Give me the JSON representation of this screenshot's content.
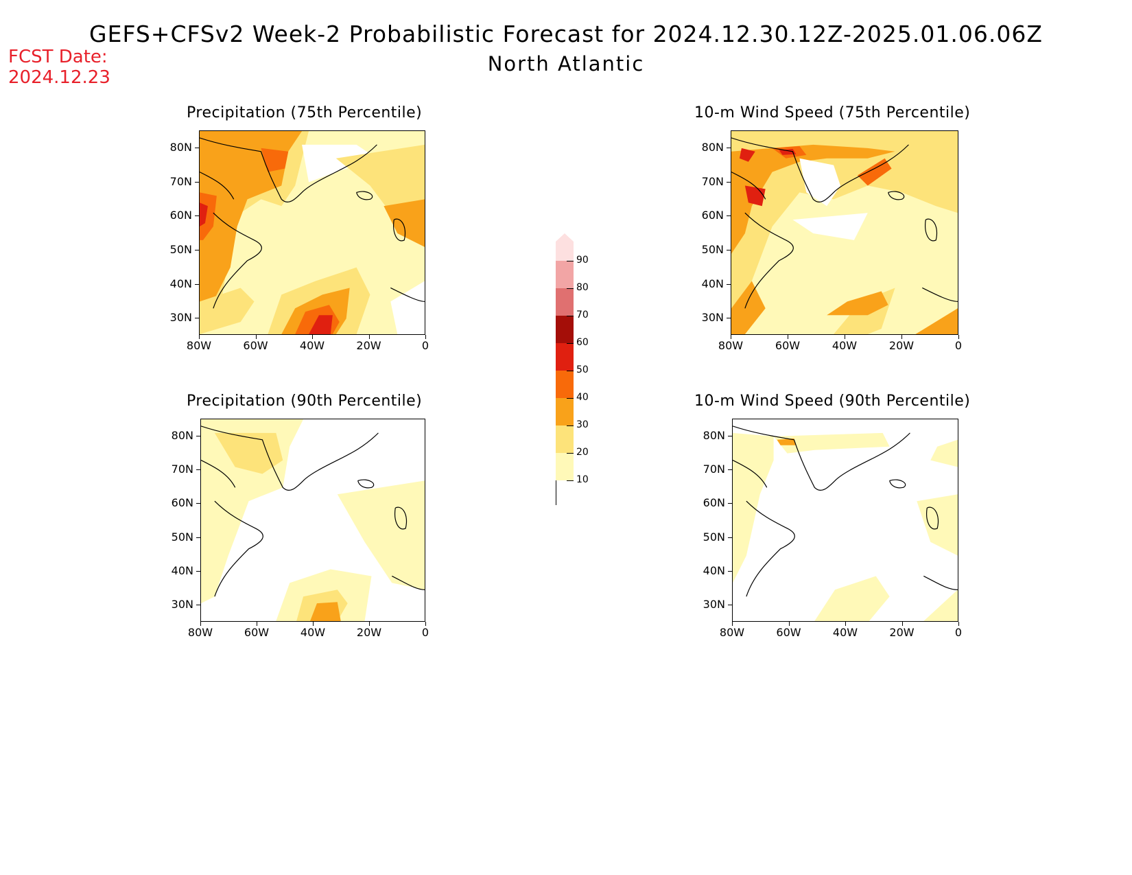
{
  "header": {
    "title": "GEFS+CFSv2 Week-2 Probabilistic Forecast for 2024.12.30.12Z-2025.01.06.06Z",
    "region": "North Atlantic",
    "fcst_label": "FCST Date:",
    "fcst_date": "2024.12.23"
  },
  "panels": [
    {
      "title": "Precipitation (75th Percentile)"
    },
    {
      "title": "10-m Wind Speed (75th Percentile)"
    },
    {
      "title": "Precipitation (90th Percentile)"
    },
    {
      "title": "10-m Wind Speed (90th Percentile)"
    }
  ],
  "axes": {
    "lat_labels": [
      "80N",
      "70N",
      "60N",
      "50N",
      "40N",
      "30N"
    ],
    "lon_labels": [
      "80W",
      "60W",
      "40W",
      "20W",
      "0"
    ],
    "lat_range": [
      25,
      85
    ],
    "lon_range": [
      -80,
      0
    ]
  },
  "colorbar": {
    "levels": [
      "10",
      "20",
      "30",
      "40",
      "50",
      "60",
      "70",
      "80",
      "90"
    ],
    "colors": [
      "#fff9b8",
      "#fde37a",
      "#f9a21a",
      "#f86a0a",
      "#e02010",
      "#a40e08",
      "#e07070",
      "#f2a5a5",
      "#fde0e0"
    ]
  }
}
